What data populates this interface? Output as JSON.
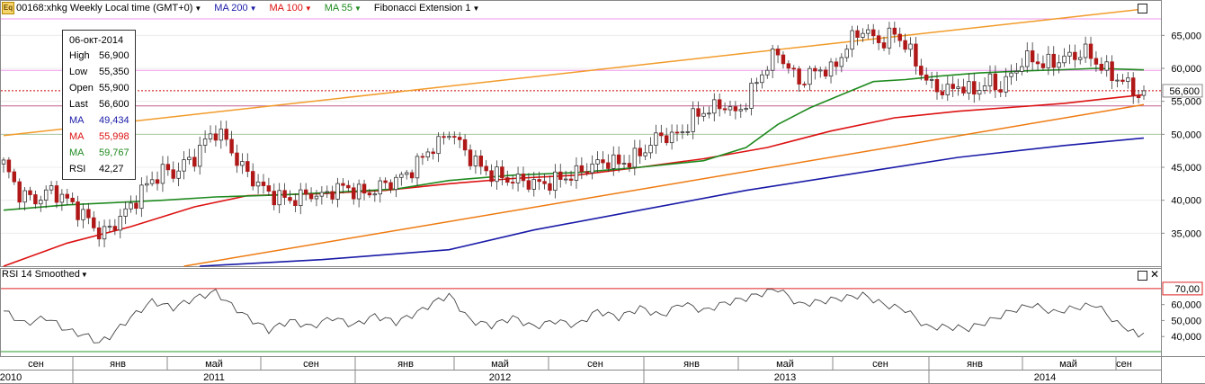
{
  "header": {
    "symbol": "00168:xhkg Weekly Local time (GMT+0)",
    "icon": "equity-icon",
    "icon_text": "Eq",
    "ma200": "MA 200",
    "ma100": "MA 100",
    "ma55": "MA 55",
    "fib": "Fibonacci Extension 1"
  },
  "colors": {
    "ma200": "#1a1aa8",
    "ma100": "#dd1111",
    "ma55": "#1f8a1f",
    "candle_up": "#ffffff",
    "candle_down": "#b01818",
    "channel_upper": "#f29b2a",
    "channel_lower": "#ee7a10",
    "fib_level": "#ee99ee"
  },
  "tooltip": {
    "date": "06-окт-2014",
    "rows": [
      {
        "k": "High",
        "v": "56,900",
        "color": "#000000"
      },
      {
        "k": "Low",
        "v": "55,350",
        "color": "#000000"
      },
      {
        "k": "Open",
        "v": "55,900",
        "color": "#000000"
      },
      {
        "k": "Last",
        "v": "56,600",
        "color": "#000000"
      },
      {
        "k": "MA",
        "v": "49,434",
        "color": "#1a1aa8"
      },
      {
        "k": "MA",
        "v": "55,998",
        "color": "#dd1111"
      },
      {
        "k": "MA",
        "v": "59,767",
        "color": "#1f8a1f"
      },
      {
        "k": "RSI",
        "v": "42,27",
        "color": "#000000"
      }
    ]
  },
  "rsi": {
    "title": "RSI 14 Smoothed",
    "level_upper_label": "70,00",
    "ticks": [
      "60,000",
      "50,000",
      "40,000"
    ]
  },
  "x_axis": {
    "months": [
      "сен",
      "янв",
      "май",
      "сен",
      "янв",
      "май",
      "сен",
      "янв",
      "май",
      "сен",
      "янв",
      "май",
      "сен"
    ],
    "years": [
      "2010",
      "2011",
      "2012",
      "2013",
      "2014"
    ]
  },
  "chart_data": {
    "type": "candlestick",
    "title": "00168:xhkg Weekly Local time (GMT+0)",
    "x_range": [
      "2010-09",
      "2014-10"
    ],
    "y_ticks": [
      "65,000",
      "60,000",
      "55,000",
      "50,000",
      "45,000",
      "40,000",
      "35,000"
    ],
    "ylim": [
      30000,
      69000
    ],
    "last_price_label": "56,600",
    "last_price": 56600,
    "close_path": [
      [
        0,
        45500
      ],
      [
        3,
        41000
      ],
      [
        6,
        40000
      ],
      [
        9,
        41500
      ],
      [
        12,
        40000
      ],
      [
        14,
        38500
      ],
      [
        16,
        37000
      ],
      [
        18,
        35000
      ],
      [
        20,
        35500
      ],
      [
        22,
        37500
      ],
      [
        24,
        39000
      ],
      [
        26,
        41500
      ],
      [
        28,
        43000
      ],
      [
        30,
        44500
      ],
      [
        32,
        44000
      ],
      [
        34,
        45500
      ],
      [
        36,
        46500
      ],
      [
        38,
        49000
      ],
      [
        40,
        50500
      ],
      [
        42,
        49000
      ],
      [
        44,
        46000
      ],
      [
        46,
        44000
      ],
      [
        48,
        42500
      ],
      [
        50,
        41000
      ],
      [
        52,
        40500
      ],
      [
        54,
        40000
      ],
      [
        56,
        40500
      ],
      [
        58,
        41000
      ],
      [
        60,
        40500
      ],
      [
        62,
        41500
      ],
      [
        64,
        42000
      ],
      [
        66,
        41500
      ],
      [
        68,
        41000
      ],
      [
        70,
        41500
      ],
      [
        72,
        42500
      ],
      [
        74,
        43000
      ],
      [
        76,
        44000
      ],
      [
        78,
        45500
      ],
      [
        80,
        47500
      ],
      [
        82,
        48500
      ],
      [
        84,
        50500
      ],
      [
        86,
        48500
      ],
      [
        88,
        46500
      ],
      [
        90,
        45000
      ],
      [
        92,
        44000
      ],
      [
        94,
        43500
      ],
      [
        96,
        43000
      ],
      [
        98,
        43000
      ],
      [
        100,
        42500
      ],
      [
        102,
        42500
      ],
      [
        104,
        43000
      ],
      [
        106,
        43500
      ],
      [
        108,
        44000
      ],
      [
        110,
        45000
      ],
      [
        112,
        45500
      ],
      [
        114,
        46000
      ],
      [
        116,
        45500
      ],
      [
        118,
        46000
      ],
      [
        120,
        47000
      ],
      [
        122,
        48500
      ],
      [
        124,
        50000
      ],
      [
        126,
        49500
      ],
      [
        128,
        50500
      ],
      [
        130,
        52500
      ],
      [
        132,
        53500
      ],
      [
        134,
        54000
      ],
      [
        136,
        54500
      ],
      [
        138,
        53000
      ],
      [
        140,
        55000
      ],
      [
        142,
        58000
      ],
      [
        144,
        60500
      ],
      [
        146,
        62500
      ],
      [
        148,
        60000
      ],
      [
        150,
        58000
      ],
      [
        152,
        59000
      ],
      [
        154,
        60000
      ],
      [
        156,
        59500
      ],
      [
        158,
        62000
      ],
      [
        160,
        64500
      ],
      [
        162,
        66000
      ],
      [
        164,
        64500
      ],
      [
        166,
        64000
      ],
      [
        168,
        65500
      ],
      [
        170,
        63500
      ],
      [
        172,
        61000
      ],
      [
        174,
        58000
      ],
      [
        176,
        57000
      ],
      [
        178,
        56500
      ],
      [
        180,
        57500
      ],
      [
        182,
        56500
      ],
      [
        184,
        57000
      ],
      [
        186,
        58000
      ],
      [
        188,
        57000
      ],
      [
        190,
        59000
      ],
      [
        192,
        61000
      ],
      [
        194,
        61500
      ],
      [
        196,
        60500
      ],
      [
        198,
        61000
      ],
      [
        200,
        61500
      ],
      [
        202,
        62000
      ],
      [
        204,
        62500
      ],
      [
        206,
        61000
      ],
      [
        208,
        59500
      ],
      [
        210,
        58500
      ],
      [
        212,
        57500
      ],
      [
        214,
        56000
      ],
      [
        215,
        56600
      ]
    ],
    "ma55_path": [
      [
        0,
        38500
      ],
      [
        12,
        39300
      ],
      [
        20,
        39600
      ],
      [
        30,
        40000
      ],
      [
        40,
        40500
      ],
      [
        52,
        40800
      ],
      [
        62,
        41200
      ],
      [
        74,
        41700
      ],
      [
        84,
        43000
      ],
      [
        96,
        43800
      ],
      [
        108,
        44200
      ],
      [
        120,
        45000
      ],
      [
        132,
        46000
      ],
      [
        140,
        48000
      ],
      [
        146,
        51500
      ],
      [
        152,
        54000
      ],
      [
        158,
        56000
      ],
      [
        164,
        58000
      ],
      [
        170,
        58300
      ],
      [
        176,
        58800
      ],
      [
        184,
        59300
      ],
      [
        192,
        59600
      ],
      [
        200,
        59800
      ],
      [
        206,
        60000
      ],
      [
        215,
        59767
      ]
    ],
    "ma100_path": [
      [
        0,
        30000
      ],
      [
        12,
        33500
      ],
      [
        24,
        36000
      ],
      [
        36,
        39000
      ],
      [
        46,
        40700
      ],
      [
        60,
        41000
      ],
      [
        72,
        41500
      ],
      [
        84,
        42500
      ],
      [
        96,
        43300
      ],
      [
        108,
        43800
      ],
      [
        120,
        45000
      ],
      [
        132,
        46300
      ],
      [
        144,
        48000
      ],
      [
        156,
        50500
      ],
      [
        168,
        52500
      ],
      [
        180,
        53500
      ],
      [
        192,
        54200
      ],
      [
        200,
        54700
      ],
      [
        208,
        55400
      ],
      [
        215,
        55998
      ]
    ],
    "ma200_path": [
      [
        37,
        30000
      ],
      [
        60,
        31000
      ],
      [
        84,
        32500
      ],
      [
        100,
        35500
      ],
      [
        120,
        38500
      ],
      [
        140,
        41500
      ],
      [
        160,
        44000
      ],
      [
        180,
        46500
      ],
      [
        200,
        48300
      ],
      [
        215,
        49434
      ]
    ],
    "channel_upper": [
      [
        0,
        49800
      ],
      [
        215,
        69000
      ]
    ],
    "channel_lower": [
      [
        34,
        30000
      ],
      [
        215,
        54500
      ]
    ],
    "fib_levels": [
      67500,
      59700,
      54300,
      50000
    ],
    "price_marker": 56600,
    "rsi": {
      "ylim": [
        30,
        75
      ],
      "upper_level": 70,
      "lower_level": 30,
      "values": [
        [
          0,
          56
        ],
        [
          4,
          48
        ],
        [
          8,
          52
        ],
        [
          12,
          44
        ],
        [
          16,
          40
        ],
        [
          18,
          36
        ],
        [
          20,
          40
        ],
        [
          24,
          52
        ],
        [
          28,
          62
        ],
        [
          32,
          58
        ],
        [
          36,
          64
        ],
        [
          40,
          68
        ],
        [
          42,
          62
        ],
        [
          46,
          52
        ],
        [
          50,
          44
        ],
        [
          54,
          50
        ],
        [
          58,
          46
        ],
        [
          62,
          52
        ],
        [
          66,
          47
        ],
        [
          70,
          53
        ],
        [
          74,
          49
        ],
        [
          78,
          55
        ],
        [
          82,
          63
        ],
        [
          84,
          66
        ],
        [
          88,
          50
        ],
        [
          92,
          47
        ],
        [
          96,
          52
        ],
        [
          100,
          46
        ],
        [
          104,
          50
        ],
        [
          108,
          47
        ],
        [
          112,
          56
        ],
        [
          116,
          52
        ],
        [
          120,
          58
        ],
        [
          124,
          53
        ],
        [
          128,
          61
        ],
        [
          132,
          56
        ],
        [
          136,
          61
        ],
        [
          140,
          64
        ],
        [
          144,
          68
        ],
        [
          146,
          70
        ],
        [
          150,
          60
        ],
        [
          154,
          62
        ],
        [
          158,
          64
        ],
        [
          162,
          66
        ],
        [
          166,
          60
        ],
        [
          170,
          57
        ],
        [
          174,
          46
        ],
        [
          178,
          46
        ],
        [
          182,
          45
        ],
        [
          186,
          50
        ],
        [
          190,
          56
        ],
        [
          194,
          60
        ],
        [
          198,
          55
        ],
        [
          202,
          58
        ],
        [
          206,
          60
        ],
        [
          210,
          48
        ],
        [
          212,
          45
        ],
        [
          214,
          40
        ],
        [
          215,
          42.27
        ]
      ]
    }
  }
}
